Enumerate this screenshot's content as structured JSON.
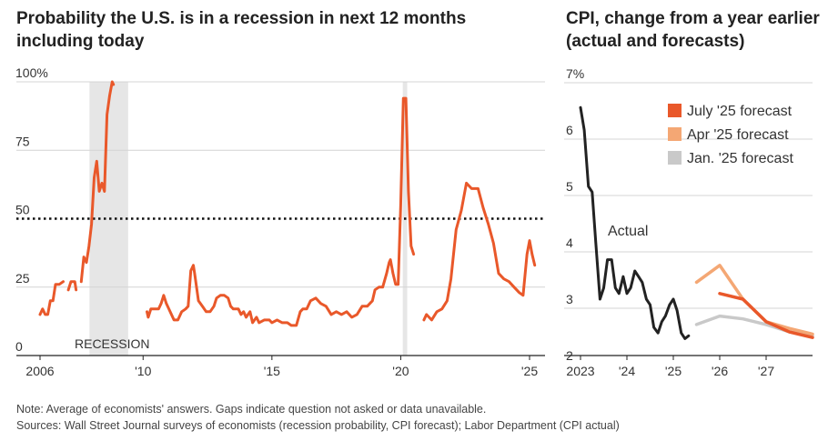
{
  "left_title": "Probability the U.S. is in a recession in next 12 months including today",
  "right_title": "CPI, change from a year earlier (actual and forecasts)",
  "note": "Note: Average of economists' answers. Gaps indicate question not asked or data unavailable.",
  "sources": "Sources: Wall Street Journal surveys of economists (recession probability, CPI forecast); Labor Department (CPI actual)",
  "colors": {
    "line": "#e9582a",
    "july": "#e9582a",
    "apr": "#f4a774",
    "jan": "#c9c9c9",
    "actual": "#222222",
    "recession": "#e6e6e6"
  },
  "chart_data": [
    {
      "type": "line",
      "title": "Probability the U.S. is in a recession in next 12 months including today",
      "y_tick_labels": [
        "100%",
        "75",
        "50",
        "25",
        "0"
      ],
      "y_ticks": [
        100,
        75,
        50,
        25,
        0
      ],
      "x_tick_labels": [
        "2006",
        "'10",
        "'15",
        "'20",
        "'25"
      ],
      "x_ticks": [
        2006,
        2010,
        2015,
        2020,
        2025
      ],
      "xlim": [
        2006,
        2025.6
      ],
      "ylim": [
        0,
        100
      ],
      "threshold": 50,
      "annotation": "RECESSION",
      "recessions": [
        [
          2007.92,
          2009.42
        ],
        [
          2020.08,
          2020.25
        ]
      ],
      "series": [
        {
          "name": "Recession probability",
          "segments": [
            [
              [
                2006.0,
                15
              ],
              [
                2006.1,
                17
              ],
              [
                2006.2,
                15
              ],
              [
                2006.3,
                15
              ],
              [
                2006.4,
                20
              ],
              [
                2006.5,
                20
              ],
              [
                2006.6,
                26
              ],
              [
                2006.75,
                26
              ],
              [
                2006.9,
                27
              ]
            ],
            [
              [
                2007.1,
                24
              ],
              [
                2007.2,
                27
              ],
              [
                2007.35,
                27
              ],
              [
                2007.4,
                24
              ]
            ],
            [
              [
                2007.6,
                27
              ],
              [
                2007.7,
                36
              ],
              [
                2007.8,
                34
              ],
              [
                2007.9,
                40
              ],
              [
                2008.0,
                48
              ],
              [
                2008.1,
                65
              ],
              [
                2008.2,
                71
              ],
              [
                2008.3,
                60
              ],
              [
                2008.4,
                63
              ],
              [
                2008.5,
                60
              ],
              [
                2008.6,
                88
              ],
              [
                2008.7,
                95
              ],
              [
                2008.8,
                100
              ],
              [
                2008.85,
                99
              ]
            ],
            [
              [
                2010.15,
                16
              ],
              [
                2010.2,
                14
              ],
              [
                2010.3,
                17
              ],
              [
                2010.45,
                17
              ],
              [
                2010.6,
                17
              ],
              [
                2010.7,
                19
              ],
              [
                2010.8,
                22
              ],
              [
                2010.9,
                19
              ],
              [
                2011.0,
                17
              ],
              [
                2011.2,
                13
              ],
              [
                2011.35,
                13
              ],
              [
                2011.5,
                16
              ],
              [
                2011.65,
                17
              ],
              [
                2011.75,
                18
              ],
              [
                2011.85,
                31
              ],
              [
                2011.95,
                33
              ],
              [
                2012.0,
                30
              ],
              [
                2012.15,
                20
              ],
              [
                2012.3,
                18
              ],
              [
                2012.45,
                16
              ],
              [
                2012.6,
                16
              ],
              [
                2012.75,
                18
              ],
              [
                2012.85,
                21
              ],
              [
                2013.0,
                22
              ],
              [
                2013.15,
                22
              ],
              [
                2013.3,
                21
              ],
              [
                2013.4,
                18
              ],
              [
                2013.5,
                17
              ],
              [
                2013.7,
                17
              ],
              [
                2013.8,
                15
              ],
              [
                2013.9,
                16
              ],
              [
                2014.0,
                14
              ],
              [
                2014.15,
                16
              ],
              [
                2014.25,
                12
              ],
              [
                2014.4,
                14
              ],
              [
                2014.5,
                12
              ],
              [
                2014.7,
                13
              ],
              [
                2014.9,
                13
              ],
              [
                2015.0,
                12
              ],
              [
                2015.2,
                13
              ],
              [
                2015.4,
                12
              ],
              [
                2015.6,
                12
              ],
              [
                2015.75,
                11
              ],
              [
                2015.95,
                11
              ],
              [
                2016.1,
                16
              ],
              [
                2016.2,
                17
              ],
              [
                2016.35,
                17
              ],
              [
                2016.5,
                20
              ],
              [
                2016.7,
                21
              ],
              [
                2016.9,
                19
              ],
              [
                2017.1,
                18
              ],
              [
                2017.3,
                15
              ],
              [
                2017.5,
                16
              ],
              [
                2017.7,
                15
              ],
              [
                2017.9,
                16
              ],
              [
                2018.1,
                14
              ],
              [
                2018.3,
                15
              ],
              [
                2018.5,
                18
              ],
              [
                2018.7,
                18
              ],
              [
                2018.9,
                20
              ],
              [
                2019.0,
                24
              ],
              [
                2019.15,
                25
              ],
              [
                2019.3,
                25
              ],
              [
                2019.45,
                30
              ],
              [
                2019.55,
                34
              ],
              [
                2019.6,
                35
              ],
              [
                2019.7,
                30
              ],
              [
                2019.8,
                26
              ],
              [
                2019.9,
                26
              ],
              [
                2020.0,
                55
              ],
              [
                2020.1,
                94
              ],
              [
                2020.2,
                94
              ],
              [
                2020.3,
                60
              ],
              [
                2020.4,
                40
              ],
              [
                2020.5,
                37
              ]
            ],
            [
              [
                2020.9,
                13
              ],
              [
                2021.0,
                15
              ],
              [
                2021.2,
                13
              ],
              [
                2021.4,
                16
              ],
              [
                2021.6,
                17
              ],
              [
                2021.8,
                20
              ],
              [
                2021.95,
                28
              ],
              [
                2022.15,
                46
              ],
              [
                2022.35,
                53
              ],
              [
                2022.55,
                63
              ],
              [
                2022.75,
                61
              ],
              [
                2023.0,
                61
              ],
              [
                2023.2,
                54
              ],
              [
                2023.4,
                48
              ],
              [
                2023.6,
                41
              ],
              [
                2023.8,
                30
              ],
              [
                2024.0,
                28
              ],
              [
                2024.2,
                27
              ],
              [
                2024.4,
                25
              ],
              [
                2024.6,
                23
              ],
              [
                2024.75,
                22
              ],
              [
                2024.9,
                37
              ],
              [
                2025.0,
                42
              ],
              [
                2025.1,
                37
              ],
              [
                2025.2,
                33
              ]
            ]
          ]
        }
      ]
    },
    {
      "type": "line",
      "title": "CPI, change from a year earlier (actual and forecasts)",
      "y_tick_labels": [
        "7%",
        "6",
        "5",
        "4",
        "3",
        "2"
      ],
      "y_ticks": [
        7,
        6,
        5,
        4,
        3,
        2
      ],
      "x_tick_labels": [
        "2023",
        "'24",
        "'25",
        "'26",
        "'27"
      ],
      "x_ticks": [
        2023,
        2024,
        2025,
        2026,
        2027
      ],
      "xlim": [
        2023,
        2028
      ],
      "ylim": [
        2,
        7
      ],
      "legend_position": "top-right",
      "annotation": "Actual",
      "series": [
        {
          "name": "Actual",
          "key": "actual",
          "points": [
            [
              2023.0,
              6.4
            ],
            [
              2023.08,
              6.0
            ],
            [
              2023.17,
              5.0
            ],
            [
              2023.25,
              4.9
            ],
            [
              2023.33,
              4.0
            ],
            [
              2023.42,
              3.0
            ],
            [
              2023.5,
              3.2
            ],
            [
              2023.58,
              3.7
            ],
            [
              2023.67,
              3.7
            ],
            [
              2023.75,
              3.2
            ],
            [
              2023.83,
              3.1
            ],
            [
              2023.92,
              3.4
            ],
            [
              2024.0,
              3.1
            ],
            [
              2024.08,
              3.2
            ],
            [
              2024.17,
              3.5
            ],
            [
              2024.25,
              3.4
            ],
            [
              2024.33,
              3.3
            ],
            [
              2024.42,
              3.0
            ],
            [
              2024.5,
              2.9
            ],
            [
              2024.58,
              2.5
            ],
            [
              2024.67,
              2.4
            ],
            [
              2024.75,
              2.6
            ],
            [
              2024.83,
              2.7
            ],
            [
              2024.92,
              2.9
            ],
            [
              2025.0,
              3.0
            ],
            [
              2025.08,
              2.8
            ],
            [
              2025.17,
              2.4
            ],
            [
              2025.25,
              2.3
            ],
            [
              2025.33,
              2.35
            ]
          ]
        },
        {
          "name": "Jan. '25 forecast",
          "key": "jan",
          "points": [
            [
              2025.5,
              2.55
            ],
            [
              2026.0,
              2.7
            ],
            [
              2026.5,
              2.65
            ],
            [
              2027.0,
              2.55
            ],
            [
              2027.5,
              2.42
            ],
            [
              2028.0,
              2.35
            ]
          ]
        },
        {
          "name": "Apr '25 forecast",
          "key": "apr",
          "points": [
            [
              2025.5,
              3.3
            ],
            [
              2026.0,
              3.6
            ],
            [
              2026.5,
              3.0
            ],
            [
              2027.0,
              2.6
            ],
            [
              2027.5,
              2.48
            ],
            [
              2028.0,
              2.38
            ]
          ]
        },
        {
          "name": "July '25 forecast",
          "key": "july",
          "points": [
            [
              2026.0,
              3.1
            ],
            [
              2026.5,
              3.0
            ],
            [
              2027.0,
              2.6
            ],
            [
              2027.5,
              2.42
            ],
            [
              2028.0,
              2.32
            ]
          ]
        }
      ],
      "legend": [
        {
          "label": "July '25 forecast",
          "key": "july"
        },
        {
          "label": "Apr '25 forecast",
          "key": "apr"
        },
        {
          "label": "Jan. '25 forecast",
          "key": "jan"
        }
      ]
    }
  ]
}
